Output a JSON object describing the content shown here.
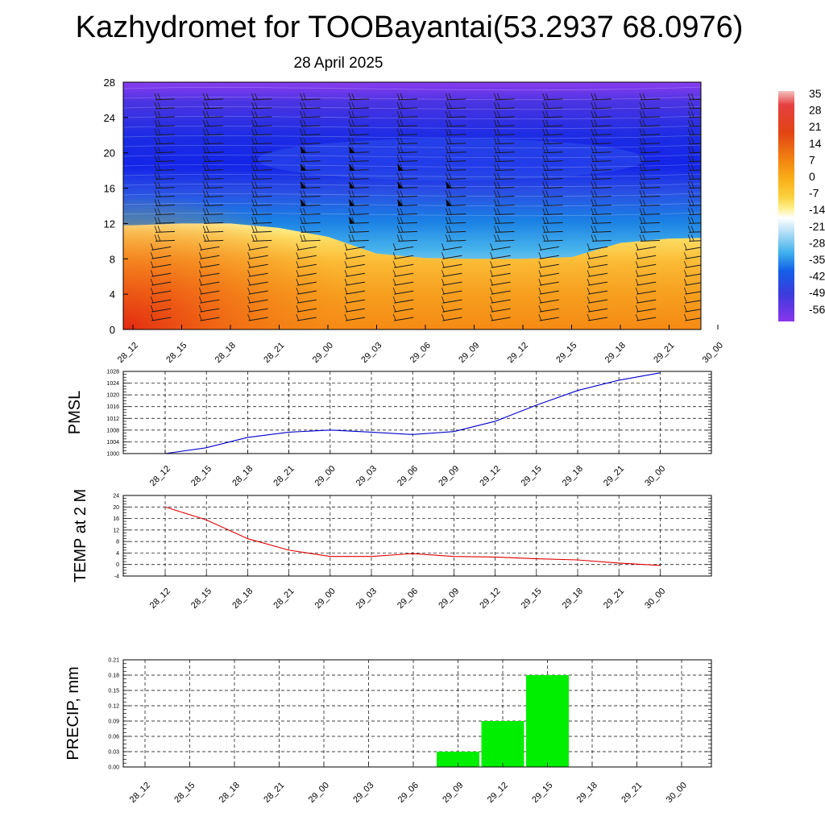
{
  "header": {
    "title": "Kazhydromet for TOOBayantai(53.2937 68.0976)",
    "date": "28 April 2025"
  },
  "time_labels": [
    "28_12",
    "28_15",
    "28_18",
    "28_21",
    "29_00",
    "29_03",
    "29_06",
    "29_09",
    "29_12",
    "29_15",
    "29_18",
    "29_21",
    "30_00"
  ],
  "colorbar": {
    "labels": [
      "35",
      "28",
      "21",
      "14",
      "7",
      "0",
      "-7",
      "-14",
      "-21",
      "-28",
      "-35",
      "-42",
      "-49",
      "-56"
    ]
  },
  "chart_data": [
    {
      "type": "heatmap",
      "title": "",
      "ylabel": "",
      "ylim": [
        0,
        28
      ],
      "y_ticks": [
        "0",
        "4",
        "8",
        "12",
        "16",
        "20",
        "24",
        "28"
      ],
      "x_ticks": [
        "28_12",
        "28_15",
        "28_18",
        "28_21",
        "29_00",
        "29_03",
        "29_06",
        "29_09",
        "29_12",
        "29_15",
        "29_18",
        "29_21",
        "30_00"
      ],
      "colormap_range": [
        -56,
        35
      ],
      "warm_layer_top": [
        11.8,
        12.0,
        12.0,
        11.5,
        10.5,
        8.6,
        8.1,
        8.0,
        8.0,
        8.2,
        9.8,
        10.3,
        10.4
      ],
      "strong_wind_levels": {
        "28_21": [
          14,
          20
        ],
        "29_00": [
          12,
          20
        ],
        "29_03": [
          13,
          19
        ],
        "29_06": [
          14,
          17
        ]
      }
    },
    {
      "type": "line",
      "ylabel": "PMSL",
      "x": [
        "28_12",
        "28_15",
        "28_18",
        "28_21",
        "29_00",
        "29_03",
        "29_06",
        "29_09",
        "29_12",
        "29_15",
        "29_18",
        "29_21",
        "30_00"
      ],
      "values": [
        1000,
        1002,
        1005.5,
        1007.3,
        1008,
        1007.3,
        1006.5,
        1007.5,
        1011,
        1016.5,
        1021.5,
        1025,
        1027.5
      ],
      "ylim": [
        1000,
        1028
      ],
      "y_ticks": [
        "1000",
        "1004",
        "1008",
        "1012",
        "1016",
        "1020",
        "1024",
        "1028"
      ],
      "y_step": 4,
      "color": "#0000cc"
    },
    {
      "type": "line",
      "ylabel": "TEMP at 2 M",
      "x": [
        "28_12",
        "28_15",
        "28_18",
        "28_21",
        "29_00",
        "29_03",
        "29_06",
        "29_09",
        "29_12",
        "29_15",
        "29_18",
        "29_21",
        "30_00"
      ],
      "values": [
        20,
        15.5,
        9,
        5,
        2.8,
        2.8,
        3.8,
        2.8,
        2.6,
        2,
        1.6,
        0.5,
        -0.3
      ],
      "ylim": [
        -4,
        24
      ],
      "y_ticks": [
        "-4",
        "0",
        "4",
        "8",
        "12",
        "16",
        "20",
        "24"
      ],
      "y_step": 4,
      "color": "#dd0000"
    },
    {
      "type": "bar",
      "ylabel": "PRECIP, mm",
      "categories": [
        "28_12",
        "28_15",
        "28_18",
        "28_21",
        "29_00",
        "29_03",
        "29_06",
        "29_09",
        "29_12",
        "29_15",
        "29_18",
        "29_21",
        "30_00"
      ],
      "values": [
        0,
        0,
        0,
        0,
        0,
        0,
        0,
        0.03,
        0.09,
        0.18,
        0,
        0,
        0
      ],
      "ylim": [
        0,
        0.21
      ],
      "y_ticks": [
        "0.00",
        "0.03",
        "0.06",
        "0.09",
        "0.12",
        "0.15",
        "0.18",
        "0.21"
      ],
      "y_step": 0.03,
      "color": "#00ee00"
    }
  ]
}
